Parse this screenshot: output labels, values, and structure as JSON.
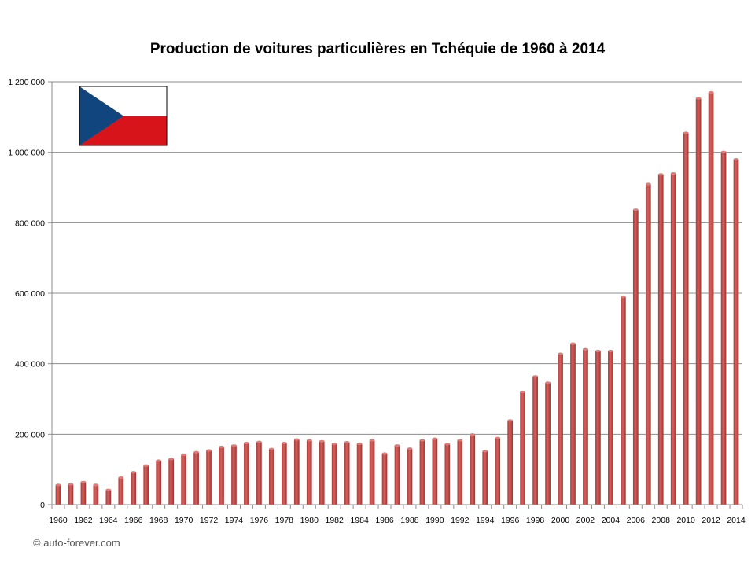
{
  "chart_data": {
    "type": "bar",
    "title": "Production de voitures particulières en Tchéquie de 1960 à 2014",
    "xlabel": "",
    "ylabel": "",
    "ylim": [
      0,
      1200000
    ],
    "y_ticks": [
      {
        "value": 0,
        "label": "0"
      },
      {
        "value": 200000,
        "label": "200 000"
      },
      {
        "value": 400000,
        "label": "400 000"
      },
      {
        "value": 600000,
        "label": "600 000"
      },
      {
        "value": 800000,
        "label": "800 000"
      },
      {
        "value": 1000000,
        "label": "1 000 000"
      },
      {
        "value": 1200000,
        "label": "1 200 000"
      }
    ],
    "categories": [
      "1960",
      "1961",
      "1962",
      "1963",
      "1964",
      "1965",
      "1966",
      "1967",
      "1968",
      "1969",
      "1970",
      "1971",
      "1972",
      "1973",
      "1974",
      "1975",
      "1976",
      "1977",
      "1978",
      "1979",
      "1980",
      "1981",
      "1982",
      "1983",
      "1984",
      "1985",
      "1986",
      "1987",
      "1988",
      "1989",
      "1990",
      "1991",
      "1992",
      "1993",
      "1994",
      "1995",
      "1996",
      "1997",
      "1998",
      "1999",
      "2000",
      "2001",
      "2002",
      "2003",
      "2004",
      "2005",
      "2006",
      "2007",
      "2008",
      "2009",
      "2010",
      "2011",
      "2012",
      "2013",
      "2014"
    ],
    "x_tick_labels": [
      "1960",
      "1962",
      "1964",
      "1966",
      "1968",
      "1970",
      "1972",
      "1974",
      "1976",
      "1978",
      "1980",
      "1982",
      "1984",
      "1986",
      "1988",
      "1990",
      "1992",
      "1994",
      "1996",
      "1998",
      "2000",
      "2002",
      "2004",
      "2006",
      "2008",
      "2010",
      "2012",
      "2014"
    ],
    "values": [
      56000,
      58000,
      64000,
      56000,
      42000,
      77000,
      92000,
      111000,
      125000,
      130000,
      142000,
      149000,
      154000,
      164000,
      168000,
      175000,
      178000,
      158000,
      175000,
      185000,
      183000,
      180000,
      173000,
      177000,
      173000,
      183000,
      145000,
      168000,
      159000,
      183000,
      187000,
      172000,
      183000,
      199000,
      152000,
      189000,
      239000,
      320000,
      364000,
      346000,
      428000,
      457000,
      441000,
      436000,
      436000,
      590000,
      837000,
      910000,
      937000,
      940000,
      1055000,
      1153000,
      1170000,
      1001000,
      980000
    ],
    "grid": true,
    "legend": "none",
    "bar_color": "#c0504d"
  },
  "footer": {
    "copyright": "© auto-forever.com"
  },
  "flag": {
    "name": "czech-flag",
    "colors": [
      "#ffffff",
      "#d7141a",
      "#11457e"
    ]
  }
}
